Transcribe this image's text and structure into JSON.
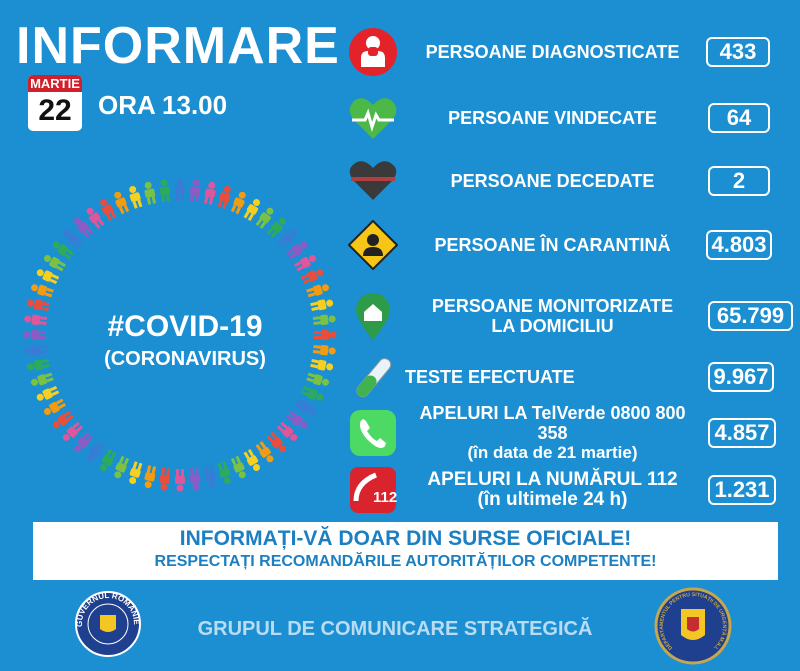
{
  "header": {
    "title": "INFORMARE",
    "calendar_month": "MARTIE",
    "calendar_day": "22",
    "time": "ORA 13.00"
  },
  "center": {
    "hashtag": "#COVID-19",
    "subtitle": "(CORONAVIRUS)"
  },
  "colors": {
    "background": "#1b8fd2",
    "banner_text": "#1b7fc2",
    "footer_text": "#b9dcf3"
  },
  "stats": [
    {
      "icon": "person-coughing-icon",
      "label": "PERSOANE DIAGNOSTICATE",
      "sub": "",
      "value": "433"
    },
    {
      "icon": "heart-pulse-icon",
      "label": "PERSOANE VINDECATE",
      "sub": "",
      "value": "64"
    },
    {
      "icon": "black-heart-icon",
      "label": "PERSOANE DECEDATE",
      "sub": "",
      "value": "2"
    },
    {
      "icon": "quarantine-warning-icon",
      "label": "PERSOANE ÎN CARANTINĂ",
      "sub": "",
      "value": "4.803"
    },
    {
      "icon": "home-pin-icon",
      "label": "PERSOANE MONITORIZATE",
      "sub": "LA DOMICILIU",
      "value": "65.799"
    },
    {
      "icon": "test-tube-icon",
      "label": "TESTE EFECTUATE",
      "sub": "",
      "value": "9.967"
    },
    {
      "icon": "phone-icon",
      "label": "APELURI LA TelVerde 0800 800 358",
      "sub": "(în data de 21 martie)",
      "value": "4.857"
    },
    {
      "icon": "phone-112-icon",
      "label": "APELURI LA NUMĂRUL 112",
      "sub": "(în ultimele 24 h)",
      "value": "1.231"
    }
  ],
  "banner": {
    "line1": "INFORMAȚI-VĂ DOAR DIN SURSE OFICIALE!",
    "line2": "RESPECTAȚI RECOMANDĂRILE AUTORITĂȚILOR COMPETENTE!"
  },
  "footer": {
    "text": "GRUPUL DE COMUNICARE STRATEGICĂ",
    "left_logo_text": "GUVERNUL ROMÂNIEI",
    "right_logo_text": "DEPARTAMENTUL PENTRU SITUAȚII DE URGENȚĂ M.A.I."
  }
}
